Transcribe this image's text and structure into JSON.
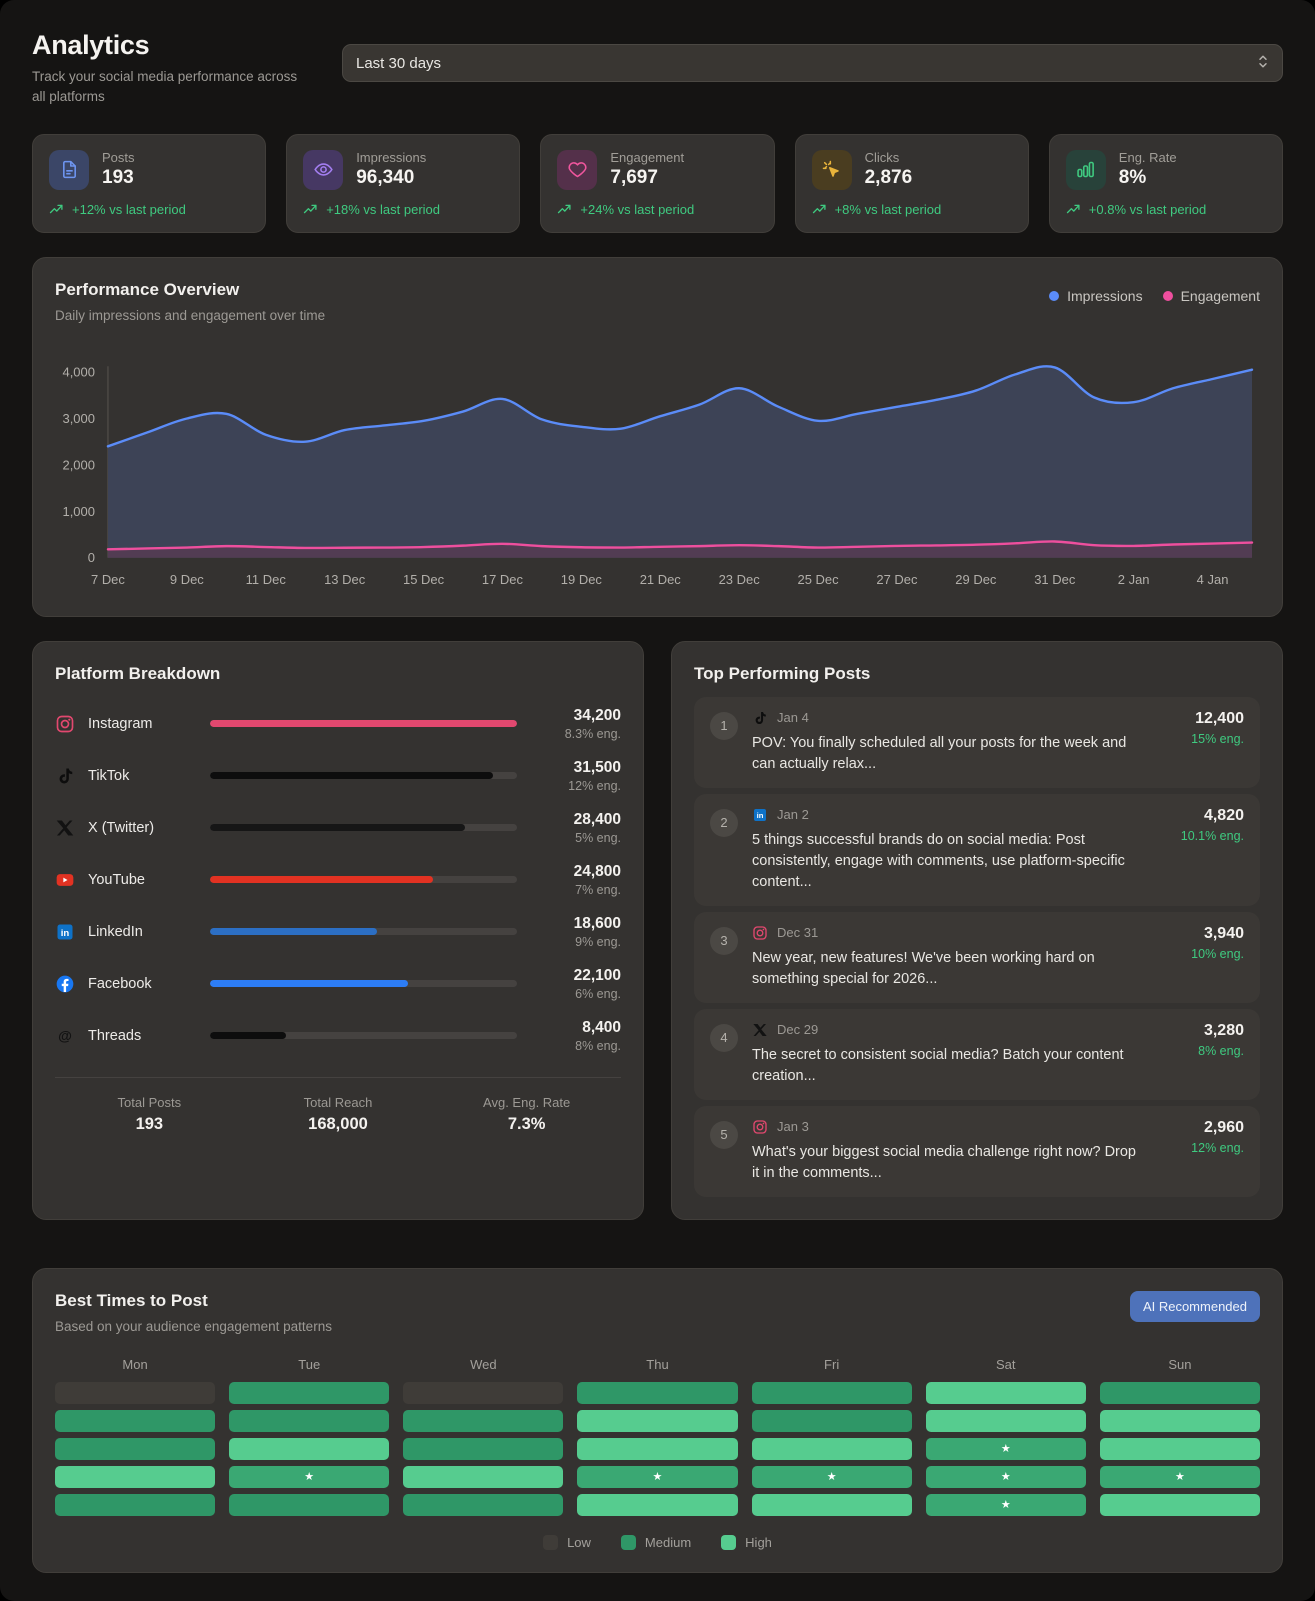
{
  "app": {
    "title": "Analytics",
    "subtitle": "Track your social media performance across all platforms"
  },
  "period_select": {
    "value": "Last 30 days",
    "icon": "chevron-updown-icon"
  },
  "stats": [
    {
      "label": "Posts",
      "value": "193",
      "trend": "+12% vs last period",
      "icon": "document-icon",
      "accent": "#6e95f1",
      "tile_bg": "#3b4667"
    },
    {
      "label": "Impressions",
      "value": "96,340",
      "trend": "+18% vs last period",
      "icon": "eye-icon",
      "accent": "#a37ef0",
      "tile_bg": "#463863"
    },
    {
      "label": "Engagement",
      "value": "7,697",
      "trend": "+24% vs last period",
      "icon": "heart-icon",
      "accent": "#f0569e",
      "tile_bg": "#54304a"
    },
    {
      "label": "Clicks",
      "value": "2,876",
      "trend": "+8% vs last period",
      "icon": "cursor-click-icon",
      "accent": "#e9b43b",
      "tile_bg": "#4a3d20"
    },
    {
      "label": "Eng. Rate",
      "value": "8%",
      "trend": "+0.8% vs last period",
      "icon": "bar-chart-icon",
      "accent": "#3fca80",
      "tile_bg": "#28423a"
    }
  ],
  "performance": {
    "title": "Performance Overview",
    "subtitle": "Daily impressions and engagement over time"
  },
  "chart_data": {
    "type": "area",
    "x": [
      "7 Dec",
      "8 Dec",
      "9 Dec",
      "10 Dec",
      "11 Dec",
      "12 Dec",
      "13 Dec",
      "14 Dec",
      "15 Dec",
      "16 Dec",
      "17 Dec",
      "18 Dec",
      "19 Dec",
      "20 Dec",
      "21 Dec",
      "22 Dec",
      "23 Dec",
      "24 Dec",
      "25 Dec",
      "26 Dec",
      "27 Dec",
      "28 Dec",
      "29 Dec",
      "30 Dec",
      "31 Dec",
      "1 Jan",
      "2 Jan",
      "3 Jan",
      "4 Jan",
      "5 Jan"
    ],
    "series": [
      {
        "name": "Impressions",
        "color": "#5b8cf8",
        "fill": "#3d4356",
        "values": [
          2400,
          2700,
          3000,
          3100,
          2650,
          2500,
          2750,
          2850,
          2950,
          3150,
          3420,
          2980,
          2820,
          2780,
          3050,
          3300,
          3650,
          3250,
          2950,
          3100,
          3250,
          3400,
          3600,
          3950,
          4100,
          3450,
          3350,
          3650,
          3850,
          4050
        ]
      },
      {
        "name": "Engagement",
        "color": "#ee4f9e",
        "fill": "#523c53",
        "values": [
          180,
          200,
          220,
          250,
          230,
          210,
          215,
          220,
          230,
          260,
          300,
          250,
          225,
          220,
          235,
          250,
          270,
          250,
          220,
          235,
          255,
          265,
          280,
          310,
          350,
          270,
          255,
          285,
          305,
          325
        ]
      }
    ],
    "ylim": [
      0,
      4300
    ],
    "yticks": [
      0,
      1000,
      2000,
      3000,
      4000
    ],
    "xtick_every": 2,
    "grid": false,
    "legend_position": "top-right"
  },
  "platform_breakdown": {
    "title": "Platform Breakdown",
    "max_value": 34200,
    "platforms": [
      {
        "name": "Instagram",
        "icon": "instagram-icon",
        "value": "34,200",
        "value_num": 34200,
        "eng": "8.3% eng.",
        "bar_color": "#e2486f"
      },
      {
        "name": "TikTok",
        "icon": "tiktok-icon",
        "value": "31,500",
        "value_num": 31500,
        "eng": "12% eng.",
        "bar_color": "#0d0d0d"
      },
      {
        "name": "X (Twitter)",
        "icon": "x-icon",
        "value": "28,400",
        "value_num": 28400,
        "eng": "5% eng.",
        "bar_color": "#161616"
      },
      {
        "name": "YouTube",
        "icon": "youtube-icon",
        "value": "24,800",
        "value_num": 24800,
        "eng": "7% eng.",
        "bar_color": "#e23222"
      },
      {
        "name": "LinkedIn",
        "icon": "linkedin-icon",
        "value": "18,600",
        "value_num": 18600,
        "eng": "9% eng.",
        "bar_color": "#2c6fc4"
      },
      {
        "name": "Facebook",
        "icon": "facebook-icon",
        "value": "22,100",
        "value_num": 22100,
        "eng": "6% eng.",
        "bar_color": "#2d7df5"
      },
      {
        "name": "Threads",
        "icon": "threads-icon",
        "value": "8,400",
        "value_num": 8400,
        "eng": "8% eng.",
        "bar_color": "#0d0d0d"
      }
    ],
    "totals": [
      {
        "label": "Total Posts",
        "value": "193"
      },
      {
        "label": "Total Reach",
        "value": "168,000"
      },
      {
        "label": "Avg. Eng. Rate",
        "value": "7.3%"
      }
    ]
  },
  "top_posts": {
    "title": "Top Performing Posts",
    "posts": [
      {
        "rank": "1",
        "icon": "tiktok-icon",
        "date": "Jan 4",
        "text": "POV: You finally scheduled all your posts for the week and can actually relax...",
        "value": "12,400",
        "eng": "15% eng."
      },
      {
        "rank": "2",
        "icon": "linkedin-icon",
        "date": "Jan 2",
        "text": "5 things successful brands do on social media: Post consistently, engage with comments, use platform-specific content...",
        "value": "4,820",
        "eng": "10.1% eng."
      },
      {
        "rank": "3",
        "icon": "instagram-icon",
        "date": "Dec 31",
        "text": "New year, new features! We've been working hard on something special for 2026...",
        "value": "3,940",
        "eng": "10% eng."
      },
      {
        "rank": "4",
        "icon": "x-icon",
        "date": "Dec 29",
        "text": "The secret to consistent social media? Batch your content creation...",
        "value": "3,280",
        "eng": "8% eng."
      },
      {
        "rank": "5",
        "icon": "instagram-icon",
        "date": "Jan 3",
        "text": "What's your biggest social media challenge right now? Drop it in the comments...",
        "value": "2,960",
        "eng": "12% eng."
      }
    ]
  },
  "best_times": {
    "title": "Best Times to Post",
    "subtitle": "Based on your audience engagement patterns",
    "badge": "AI Recommended",
    "badge_color": "#4e72ba",
    "days": [
      "Mon",
      "Tue",
      "Wed",
      "Thu",
      "Fri",
      "Sat",
      "Sun"
    ],
    "grid": [
      [
        "low",
        "med",
        "low",
        "med",
        "med",
        "high",
        "med"
      ],
      [
        "med",
        "med",
        "med",
        "high",
        "med",
        "high",
        "high"
      ],
      [
        "med",
        "high",
        "med",
        "high",
        "high",
        "ai*",
        "high"
      ],
      [
        "high",
        "ai*",
        "high",
        "ai*",
        "ai*",
        "ai*",
        "ai*"
      ],
      [
        "med",
        "med",
        "med",
        "high",
        "high",
        "ai*",
        "high"
      ]
    ],
    "levels": {
      "low": "#3f3c38",
      "med": "#2f9767",
      "high": "#56cc8f",
      "ai": "#3aa873"
    },
    "star_color": "#ffffff",
    "legend": [
      {
        "label": "Low",
        "level": "low"
      },
      {
        "label": "Medium",
        "level": "med"
      },
      {
        "label": "High",
        "level": "high"
      }
    ]
  }
}
